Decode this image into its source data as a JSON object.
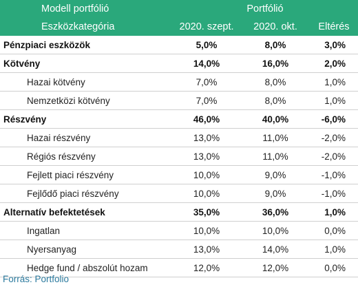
{
  "header": {
    "top_left": "Modell portfólió",
    "top_right": "Portfólió",
    "col_category": "Eszközkategória",
    "col_sep": "2020. szept.",
    "col_oct": "2020. okt.",
    "col_diff": "Eltérés"
  },
  "rows": [
    {
      "name": "Pénzpiaci eszközök",
      "sep": "5,0%",
      "oct": "8,0%",
      "diff": "3,0%",
      "bold": true
    },
    {
      "name": "Kötvény",
      "sep": "14,0%",
      "oct": "16,0%",
      "diff": "2,0%",
      "bold": true
    },
    {
      "name": "Hazai kötvény",
      "sep": "7,0%",
      "oct": "8,0%",
      "diff": "1,0%",
      "bold": false
    },
    {
      "name": "Nemzetközi kötvény",
      "sep": "7,0%",
      "oct": "8,0%",
      "diff": "1,0%",
      "bold": false
    },
    {
      "name": "Részvény",
      "sep": "46,0%",
      "oct": "40,0%",
      "diff": "-6,0%",
      "bold": true
    },
    {
      "name": "Hazai részvény",
      "sep": "13,0%",
      "oct": "11,0%",
      "diff": "-2,0%",
      "bold": false
    },
    {
      "name": "Régiós részvény",
      "sep": "13,0%",
      "oct": "11,0%",
      "diff": "-2,0%",
      "bold": false
    },
    {
      "name": "Fejlett piaci részvény",
      "sep": "10,0%",
      "oct": "9,0%",
      "diff": "-1,0%",
      "bold": false
    },
    {
      "name": "Fejlődő piaci részvény",
      "sep": "10,0%",
      "oct": "9,0%",
      "diff": "-1,0%",
      "bold": false
    },
    {
      "name": "Alternatív befektetések",
      "sep": "35,0%",
      "oct": "36,0%",
      "diff": "1,0%",
      "bold": true
    },
    {
      "name": "Ingatlan",
      "sep": "10,0%",
      "oct": "10,0%",
      "diff": "0,0%",
      "bold": false
    },
    {
      "name": "Nyersanyag",
      "sep": "13,0%",
      "oct": "14,0%",
      "diff": "1,0%",
      "bold": false
    },
    {
      "name": "Hedge fund / abszolút hozam",
      "sep": "12,0%",
      "oct": "12,0%",
      "diff": "0,0%",
      "bold": false
    }
  ],
  "source": "Forrás: Portfolio",
  "colors": {
    "header_bg": "#2aa87b",
    "source_text": "#2b7a9e"
  }
}
